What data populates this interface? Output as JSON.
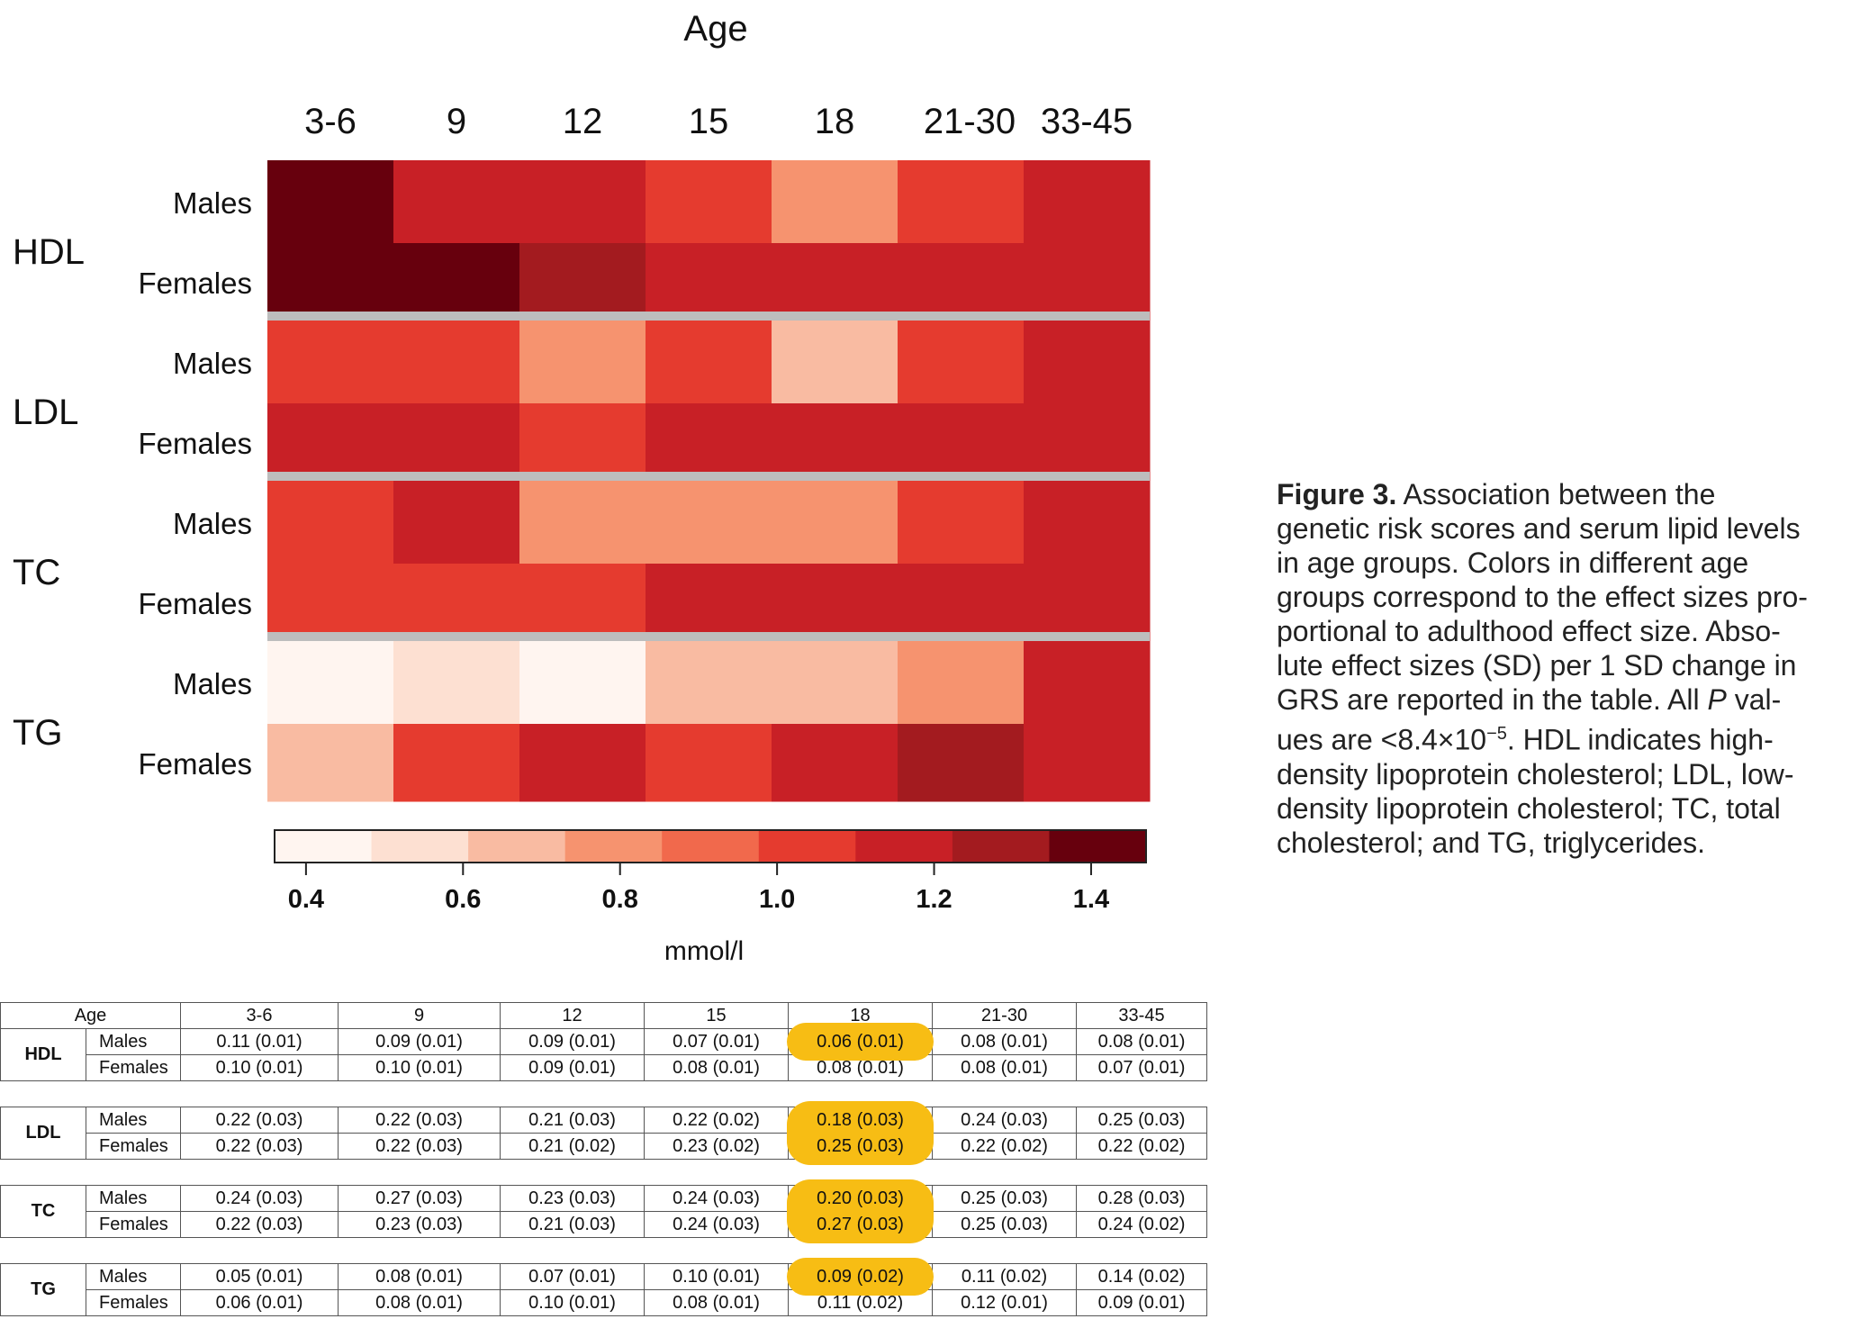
{
  "figure": {
    "top_label": "Age",
    "legend_unit": "mmol/l",
    "caption_bold": "Figure 3.",
    "caption_lines": [
      "Association between the",
      "genetic risk scores and serum lipid levels",
      "in age groups. Colors in different age",
      "groups correspond to the effect sizes pro-",
      "portional to adulthood effect size. Abso-",
      "lute effect sizes (SD) per 1 SD change in",
      "GRS are reported in the table. All ",
      "ues are <8.4×10",
      "density lipoprotein cholesterol; LDL, low-",
      "density lipoprotein cholesterol; TC, total",
      "cholesterol; and TG, triglycerides."
    ],
    "caption_p": "P",
    "caption_val": " val-",
    "caption_exp": "−5",
    "caption_hdl": ". HDL indicates high-"
  },
  "chart_data": {
    "type": "heatmap",
    "x_categories": [
      "3-6",
      "9",
      "12",
      "15",
      "18",
      "21-30",
      "33-45"
    ],
    "groups": [
      "HDL",
      "LDL",
      "TC",
      "TG"
    ],
    "rows": [
      "Males",
      "Females"
    ],
    "values": {
      "HDL": {
        "Males": [
          1.45,
          1.2,
          1.2,
          1.0,
          0.85,
          1.0,
          1.1
        ],
        "Females": [
          1.45,
          1.45,
          1.3,
          1.2,
          1.2,
          1.2,
          1.1
        ]
      },
      "LDL": {
        "Males": [
          1.0,
          1.0,
          0.85,
          1.0,
          0.7,
          1.0,
          1.1
        ],
        "Females": [
          1.1,
          1.1,
          1.0,
          1.1,
          1.2,
          1.1,
          1.1
        ]
      },
      "TC": {
        "Males": [
          1.0,
          1.1,
          0.85,
          0.85,
          0.75,
          1.0,
          1.1
        ],
        "Females": [
          1.0,
          1.0,
          1.0,
          1.1,
          1.2,
          1.1,
          1.1
        ]
      },
      "TG": {
        "Males": [
          0.4,
          0.5,
          0.4,
          0.7,
          0.7,
          0.85,
          1.1
        ],
        "Females": [
          0.7,
          1.0,
          1.2,
          1.0,
          1.2,
          1.3,
          1.1
        ]
      }
    },
    "colorbar": {
      "ticks": [
        "0.4",
        "0.6",
        "0.8",
        "1.0",
        "1.2",
        "1.4"
      ],
      "tick_values": [
        0.4,
        0.6,
        0.8,
        1.0,
        1.2,
        1.4
      ],
      "range": [
        0.36,
        1.47
      ],
      "colors": [
        "#fff5f0",
        "#fde0d2",
        "#f9bba2",
        "#f6936f",
        "#f1694c",
        "#e53b2f",
        "#c82026",
        "#a31b1f",
        "#67000d"
      ],
      "label": "mmol/l"
    },
    "separator_color": "#bdbdbd"
  },
  "table": {
    "headers": [
      "Age",
      "3-6",
      "9",
      "12",
      "15",
      "18",
      "21-30",
      "33-45"
    ],
    "groups": [
      {
        "name": "HDL",
        "rows": [
          {
            "sex": "Males",
            "cells": [
              "0.11 (0.01)",
              "0.09 (0.01)",
              "0.09 (0.01)",
              "0.07 (0.01)",
              "0.06 (0.01)",
              "0.08 (0.01)",
              "0.08 (0.01)"
            ]
          },
          {
            "sex": "Females",
            "cells": [
              "0.10 (0.01)",
              "0.10 (0.01)",
              "0.09 (0.01)",
              "0.08 (0.01)",
              "0.08 (0.01)",
              "0.08 (0.01)",
              "0.07 (0.01)"
            ]
          }
        ]
      },
      {
        "name": "LDL",
        "rows": [
          {
            "sex": "Males",
            "cells": [
              "0.22 (0.03)",
              "0.22 (0.03)",
              "0.21 (0.03)",
              "0.22 (0.02)",
              "0.18 (0.03)",
              "0.24 (0.03)",
              "0.25 (0.03)"
            ]
          },
          {
            "sex": "Females",
            "cells": [
              "0.22 (0.03)",
              "0.22 (0.03)",
              "0.21 (0.02)",
              "0.23 (0.02)",
              "0.25 (0.03)",
              "0.22 (0.02)",
              "0.22 (0.02)"
            ]
          }
        ]
      },
      {
        "name": "TC",
        "rows": [
          {
            "sex": "Males",
            "cells": [
              "0.24 (0.03)",
              "0.27 (0.03)",
              "0.23 (0.03)",
              "0.24 (0.03)",
              "0.20 (0.03)",
              "0.25 (0.03)",
              "0.28 (0.03)"
            ]
          },
          {
            "sex": "Females",
            "cells": [
              "0.22 (0.03)",
              "0.23 (0.03)",
              "0.21 (0.03)",
              "0.24 (0.03)",
              "0.27 (0.03)",
              "0.25 (0.03)",
              "0.24 (0.02)"
            ]
          }
        ]
      },
      {
        "name": "TG",
        "rows": [
          {
            "sex": "Males",
            "cells": [
              "0.05 (0.01)",
              "0.08 (0.01)",
              "0.07 (0.01)",
              "0.10 (0.01)",
              "0.09 (0.02)",
              "0.11 (0.02)",
              "0.14 (0.02)"
            ]
          },
          {
            "sex": "Females",
            "cells": [
              "0.06 (0.01)",
              "0.08 (0.01)",
              "0.10 (0.01)",
              "0.08 (0.01)",
              "0.11 (0.02)",
              "0.12 (0.01)",
              "0.09 (0.01)"
            ]
          }
        ]
      }
    ],
    "highlight_column": "18",
    "highlight_color": "#f7bd14"
  }
}
